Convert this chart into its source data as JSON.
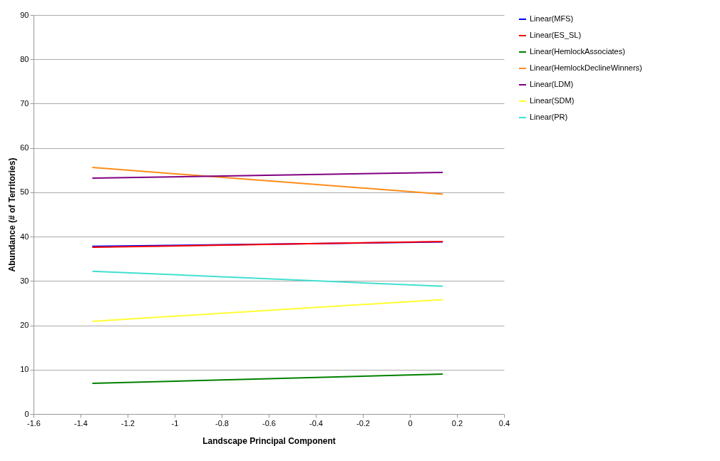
{
  "chart_data": {
    "type": "line",
    "xlabel": "Landscape Principal Component",
    "ylabel": "Abundance (# of Territories)",
    "x": [
      -1.35,
      0.14
    ],
    "series": [
      {
        "name": "Linear(MFS)",
        "color": "#0000ff",
        "values": [
          37.8,
          38.8
        ]
      },
      {
        "name": "Linear(ES_SL)",
        "color": "#ff0000",
        "values": [
          37.6,
          38.9
        ]
      },
      {
        "name": "Linear(HemlockAssociates)",
        "color": "#008000",
        "values": [
          6.9,
          9.0
        ]
      },
      {
        "name": "Linear(HemlockDeclineWinners)",
        "color": "#ff8c1a",
        "values": [
          55.6,
          49.6
        ]
      },
      {
        "name": "Linear(LDM)",
        "color": "#800080",
        "values": [
          53.2,
          54.5
        ]
      },
      {
        "name": "Linear(SDM)",
        "color": "#ffff33",
        "values": [
          20.9,
          25.8
        ]
      },
      {
        "name": "Linear(PR)",
        "color": "#40e0d0",
        "values": [
          32.2,
          28.8
        ]
      }
    ],
    "xlim": [
      -1.6,
      0.4
    ],
    "xticks": [
      -1.6,
      -1.4,
      -1.2,
      -1,
      -0.8,
      -0.6,
      -0.4,
      -0.2,
      0,
      0.2,
      0.4
    ],
    "ylim": [
      0,
      90
    ],
    "yticks": [
      0,
      10,
      20,
      30,
      40,
      50,
      60,
      70,
      80,
      90
    ],
    "grid": "y",
    "legend": "right",
    "marker": "none",
    "line_style": "solid"
  }
}
